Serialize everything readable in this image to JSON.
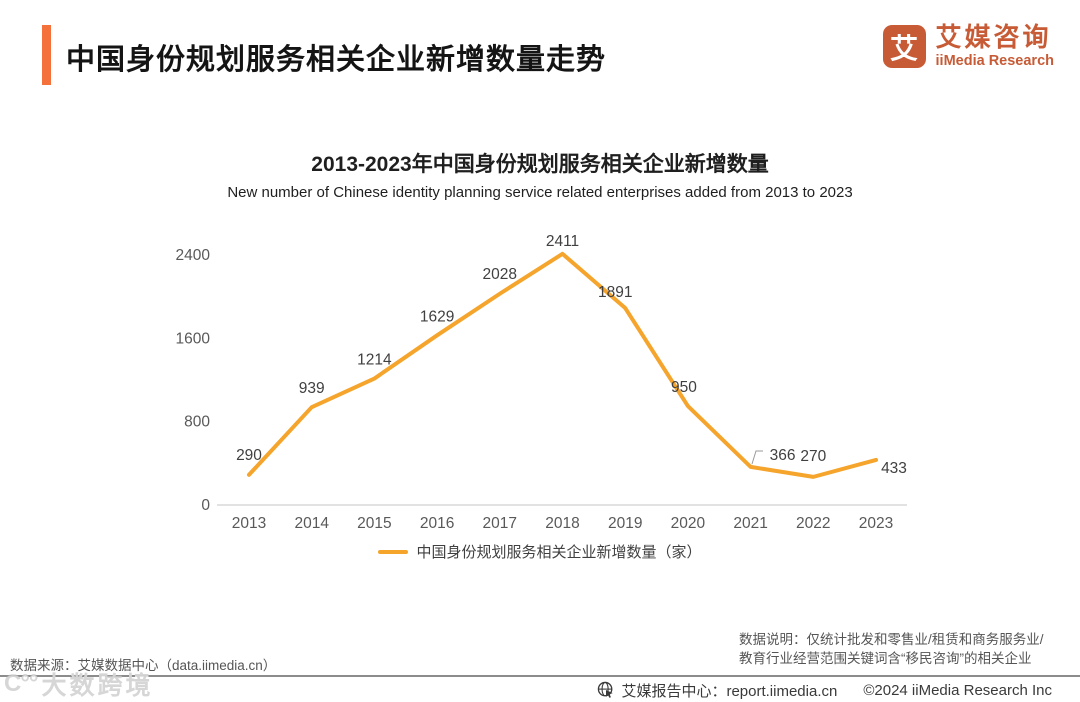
{
  "header": {
    "title": "中国身份规划服务相关企业新增数量走势",
    "logo": {
      "glyph": "艾",
      "name_cn": "艾媒咨询",
      "name_en": "iiMedia Research"
    }
  },
  "chart": {
    "title": "2013-2023年中国身份规划服务相关企业新增数量",
    "subtitle": "New number of Chinese identity planning service related enterprises added from 2013 to 2023",
    "legend_label": "中国身份规划服务相关企业新增数量（家）"
  },
  "chart_data": {
    "type": "line",
    "title": "2013-2023年中国身份规划服务相关企业新增数量",
    "subtitle": "New number of Chinese identity planning service related enterprises added from 2013 to 2023",
    "categories": [
      "2013",
      "2014",
      "2015",
      "2016",
      "2017",
      "2018",
      "2019",
      "2020",
      "2021",
      "2022",
      "2023"
    ],
    "series": [
      {
        "name": "中国身份规划服务相关企业新增数量（家）",
        "values": [
          290,
          939,
          1214,
          1629,
          2028,
          2411,
          1891,
          950,
          366,
          270,
          433
        ]
      }
    ],
    "y_ticks": [
      0,
      800,
      1600,
      2400
    ],
    "ylim": [
      0,
      2600
    ],
    "xlabel": "",
    "ylabel": "",
    "grid": false,
    "legend_position": "bottom",
    "line_color": "#F5A42C",
    "axis_text_color": "#595959",
    "label_text_color": "#404040",
    "baseline_color": "#D9D9D9"
  },
  "footer": {
    "source": "数据来源：艾媒数据中心（data.iimedia.cn）",
    "note": "数据说明：仅统计批发和零售业/租赁和商务服务业/教育行业经营范围关键词含“移民咨询”的相关企业",
    "report_center": "艾媒报告中心：report.iimedia.cn",
    "copyright": "©2024  iiMedia Research  Inc",
    "watermark_logo": "C°°",
    "watermark": "大数跨境"
  },
  "colors": {
    "accent_orange": "#F4713C",
    "brand_brick": "#C75B36",
    "line_orange": "#F5A42C"
  }
}
